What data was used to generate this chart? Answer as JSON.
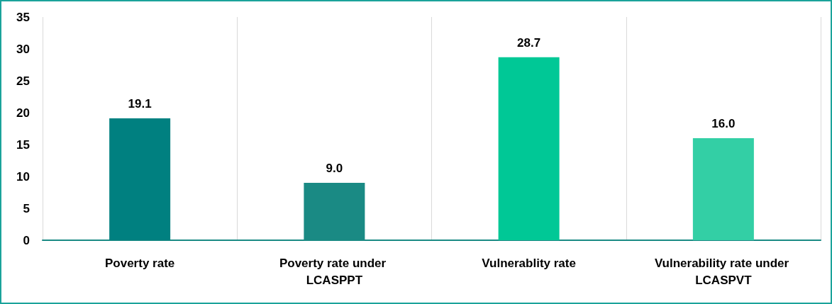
{
  "chart_data": {
    "type": "bar",
    "categories": [
      "Poverty rate",
      "Poverty rate under LCASPPT",
      "Vulnerablity rate",
      "Vulnerability rate under LCASPVT"
    ],
    "values": [
      19.1,
      9.0,
      28.7,
      16.0
    ],
    "value_labels": [
      "19.1",
      "9.0",
      "28.7",
      "16.0"
    ],
    "colors": [
      "#008080",
      "#1a8a84",
      "#00c896",
      "#33cfa5"
    ],
    "ylim": [
      0,
      35
    ],
    "yticks": [
      0,
      5,
      10,
      15,
      20,
      25,
      30,
      35
    ],
    "grid": "x"
  }
}
